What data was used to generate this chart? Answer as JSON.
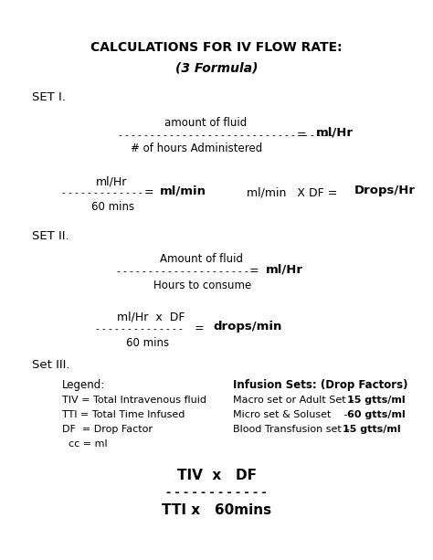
{
  "title": "CALCULATIONS FOR IV FLOW RATE:",
  "subtitle": "(3 Formula)",
  "bg_color": "#ffffff"
}
